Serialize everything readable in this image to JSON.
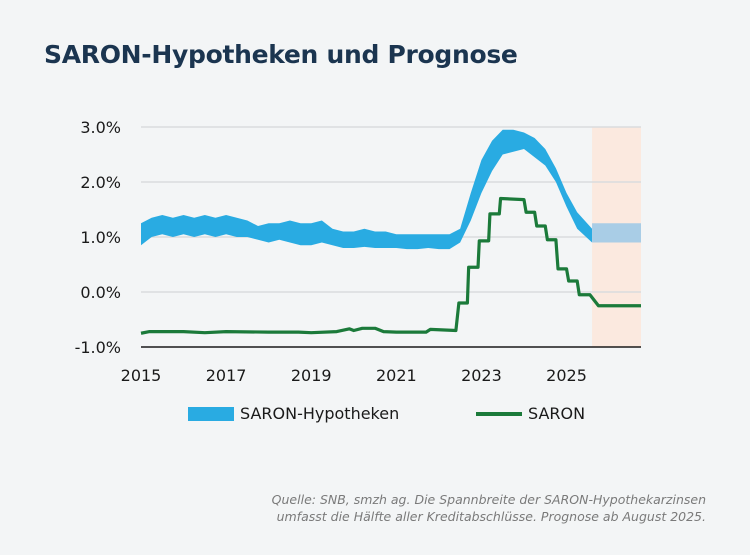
{
  "title": "SARON-Hypotheken und Prognose",
  "chart_data": {
    "type": "area",
    "ylim": [
      -1.0,
      3.0
    ],
    "xlim": [
      2015,
      2026.75
    ],
    "yticks": [
      "3.0%",
      "2.0%",
      "1.0%",
      "0.0%",
      "-1.0%"
    ],
    "ytick_values": [
      3,
      2,
      1,
      0,
      -1
    ],
    "xticks": [
      "2015",
      "2017",
      "2019",
      "2021",
      "2023",
      "2025"
    ],
    "xtick_values": [
      2015,
      2017,
      2019,
      2021,
      2023,
      2025
    ],
    "grid": "horizontal",
    "forecast_start": 2025.6,
    "forecast_shade_color": "#fbe9df",
    "legend_position": "bottom",
    "series": [
      {
        "name": "SARON-Hypotheken",
        "kind": "band",
        "color": "#29abe2",
        "forecast_color": "#a9cde6",
        "x": [
          2015.0,
          2015.25,
          2015.5,
          2015.75,
          2016.0,
          2016.25,
          2016.5,
          2016.75,
          2017.0,
          2017.25,
          2017.5,
          2017.75,
          2018.0,
          2018.25,
          2018.5,
          2018.75,
          2019.0,
          2019.25,
          2019.5,
          2019.75,
          2020.0,
          2020.25,
          2020.5,
          2020.75,
          2021.0,
          2021.25,
          2021.5,
          2021.75,
          2022.0,
          2022.25,
          2022.5,
          2022.75,
          2023.0,
          2023.25,
          2023.5,
          2023.75,
          2024.0,
          2024.25,
          2024.5,
          2024.75,
          2025.0,
          2025.25,
          2025.6
        ],
        "lower": [
          0.85,
          1.0,
          1.05,
          1.0,
          1.05,
          1.0,
          1.05,
          1.0,
          1.05,
          1.0,
          1.0,
          0.95,
          0.9,
          0.95,
          0.9,
          0.85,
          0.85,
          0.9,
          0.85,
          0.8,
          0.8,
          0.82,
          0.8,
          0.8,
          0.8,
          0.78,
          0.78,
          0.8,
          0.78,
          0.78,
          0.9,
          1.3,
          1.8,
          2.2,
          2.5,
          2.55,
          2.6,
          2.45,
          2.3,
          2.0,
          1.55,
          1.15,
          0.9
        ],
        "upper": [
          1.25,
          1.35,
          1.4,
          1.35,
          1.4,
          1.35,
          1.4,
          1.35,
          1.4,
          1.35,
          1.3,
          1.2,
          1.25,
          1.25,
          1.3,
          1.25,
          1.25,
          1.3,
          1.15,
          1.1,
          1.1,
          1.15,
          1.1,
          1.1,
          1.05,
          1.05,
          1.05,
          1.05,
          1.05,
          1.05,
          1.15,
          1.8,
          2.4,
          2.75,
          2.95,
          2.95,
          2.9,
          2.8,
          2.6,
          2.25,
          1.8,
          1.45,
          1.15
        ],
        "forecast_x": [
          2025.6,
          2026.75
        ],
        "forecast_lower": [
          0.9,
          0.9
        ],
        "forecast_upper": [
          1.25,
          1.25
        ]
      },
      {
        "name": "SARON",
        "kind": "line",
        "color": "#1b7a3a",
        "x": [
          2015.0,
          2015.2,
          2016.0,
          2016.5,
          2017.0,
          2018.0,
          2018.7,
          2019.0,
          2019.6,
          2019.9,
          2020.0,
          2020.2,
          2020.5,
          2020.7,
          2021.0,
          2021.7,
          2021.8,
          2022.4,
          2022.47,
          2022.67,
          2022.7,
          2022.92,
          2022.95,
          2023.17,
          2023.2,
          2023.42,
          2023.45,
          2024.0,
          2024.05,
          2024.25,
          2024.3,
          2024.5,
          2024.55,
          2024.75,
          2024.8,
          2025.0,
          2025.05,
          2025.25,
          2025.3,
          2025.55,
          2025.75,
          2026.75
        ],
        "values": [
          -0.75,
          -0.72,
          -0.72,
          -0.74,
          -0.72,
          -0.73,
          -0.73,
          -0.74,
          -0.72,
          -0.67,
          -0.7,
          -0.66,
          -0.66,
          -0.72,
          -0.73,
          -0.73,
          -0.68,
          -0.7,
          -0.2,
          -0.2,
          0.45,
          0.45,
          0.93,
          0.93,
          1.42,
          1.42,
          1.7,
          1.68,
          1.45,
          1.45,
          1.2,
          1.2,
          0.95,
          0.95,
          0.42,
          0.42,
          0.2,
          0.2,
          -0.05,
          -0.05,
          -0.25,
          -0.25
        ]
      }
    ]
  },
  "legend": {
    "band_label": "SARON-Hypotheken",
    "line_label": "SARON"
  },
  "note": {
    "line1": "Quelle: SNB, smzh ag. Die Spannbreite der SARON-Hypothekarzinsen",
    "line2": "umfasst die Hälfte aller Kreditabschlüsse. Prognose ab August 2025."
  }
}
